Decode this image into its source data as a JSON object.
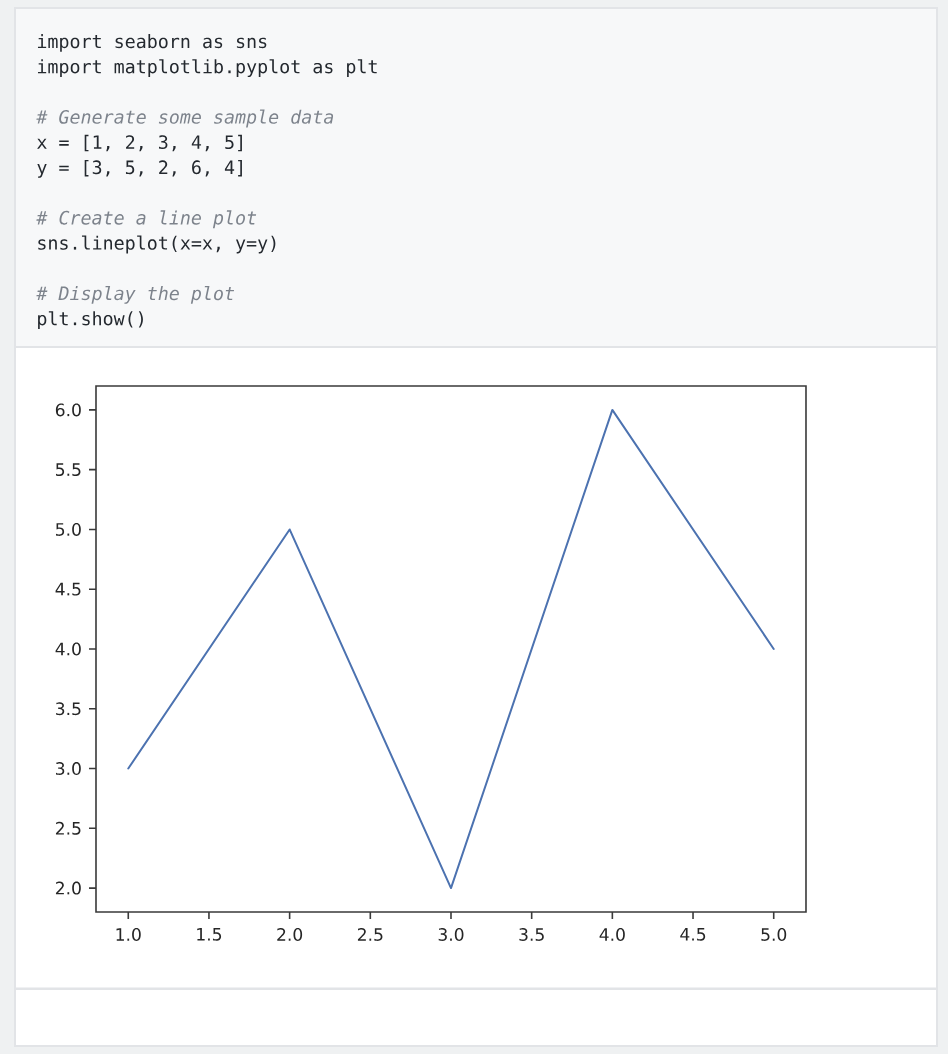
{
  "chart_data": {
    "type": "line",
    "annotations": [
      "import seaborn as sns",
      "import matplotlib.pyplot as plt",
      "# Generate some sample data",
      "x = [1, 2, 3, 4, 5]",
      "y = [3, 5, 2, 6, 4]",
      "# Create a line plot",
      "sns.lineplot(x=x, y=y)",
      "# Display the plot",
      "plt.show()"
    ],
    "x": [
      1,
      2,
      3,
      4,
      5
    ],
    "series": [
      {
        "color": "#4c72b0",
        "values": [
          3,
          5,
          2,
          6,
          4
        ]
      }
    ],
    "xlim": [
      0.8,
      5.2
    ],
    "ylim": [
      1.8,
      6.2
    ],
    "xticks": [
      {
        "value": 1,
        "label": "1.0"
      },
      {
        "value": 1.5,
        "label": "1.5"
      },
      {
        "value": 2,
        "label": "2.0"
      },
      {
        "value": 2.5,
        "label": "2.5"
      },
      {
        "value": 3,
        "label": "3.0"
      },
      {
        "value": 3.5,
        "label": "3.5"
      },
      {
        "value": 4,
        "label": "4.0"
      },
      {
        "value": 4.5,
        "label": "4.5"
      },
      {
        "value": 5,
        "label": "5.0"
      }
    ],
    "yticks": [
      {
        "value": 2,
        "label": "2.0"
      },
      {
        "value": 2.5,
        "label": "2.5"
      },
      {
        "value": 3,
        "label": "3.0"
      },
      {
        "value": 3.5,
        "label": "3.5"
      },
      {
        "value": 4,
        "label": "4.0"
      },
      {
        "value": 4.5,
        "label": "4.5"
      },
      {
        "value": 5,
        "label": "5.0"
      },
      {
        "value": 5.5,
        "label": "5.5"
      },
      {
        "value": 6,
        "label": "6.0"
      }
    ],
    "marker": "none",
    "line_style": "solid"
  }
}
